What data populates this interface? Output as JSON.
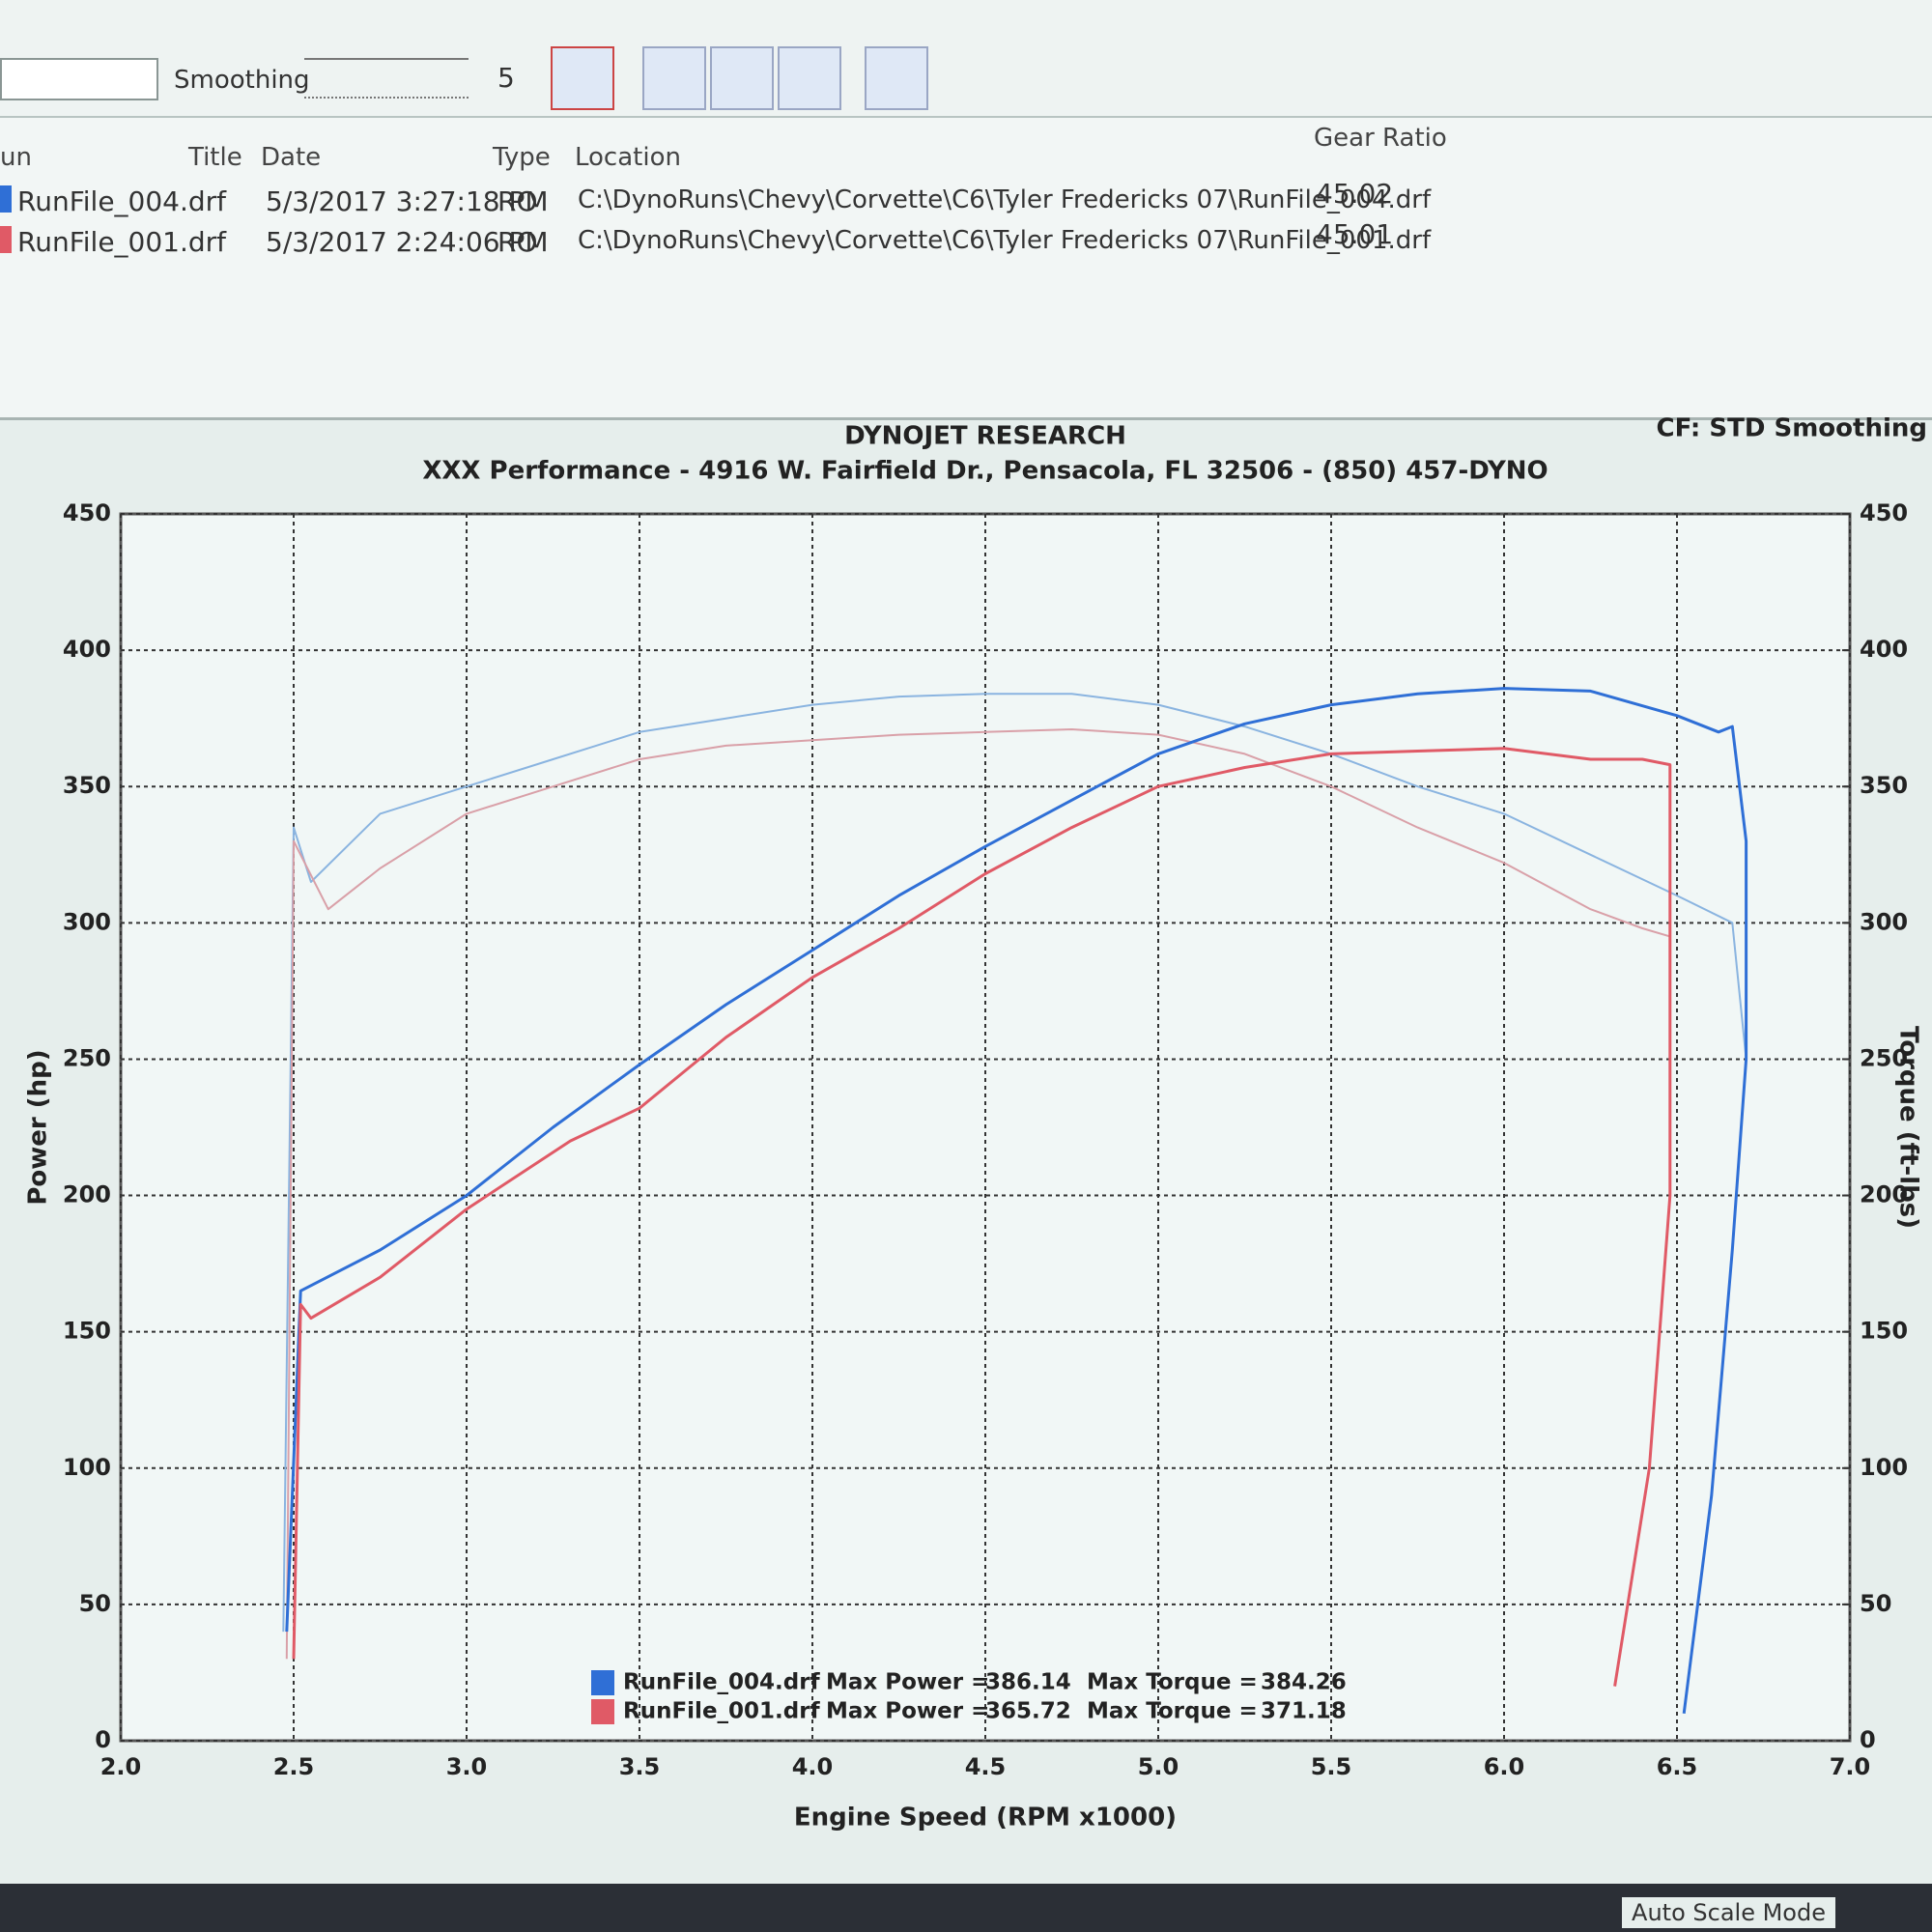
{
  "toolbar": {
    "smoothing_label": "Smoothing",
    "smoothing_value": 5
  },
  "run_table": {
    "headers": [
      "un",
      "Title",
      "Date",
      "Type",
      "Location",
      "Gear Ratio"
    ],
    "rows": [
      {
        "run": "RunFile_004.drf",
        "color": "#2f6fd6",
        "date": "5/3/2017 3:27:18 PM",
        "type": "RO",
        "location": "C:\\DynoRuns\\Chevy\\Corvette\\C6\\Tyler Fredericks 07\\RunFile_004.drf",
        "gear_ratio": 45.02
      },
      {
        "run": "RunFile_001.drf",
        "color": "#e05a66",
        "date": "5/3/2017 2:24:06 PM",
        "type": "RO",
        "location": "C:\\DynoRuns\\Chevy\\Corvette\\C6\\Tyler Fredericks 07\\RunFile_001.drf",
        "gear_ratio": 45.01
      }
    ]
  },
  "status_bar": {
    "mode": "Auto Scale Mode"
  },
  "chart_data": {
    "type": "line",
    "title": "DYNOJET RESEARCH",
    "subtitle": "XXX Performance - 4916 W. Fairfield Dr., Pensacola, FL 32506 - (850) 457-DYNO",
    "corner_note": "CF: STD  Smoothing",
    "x_label": "Engine Speed (RPM x1000)",
    "y_label": "Power (hp)",
    "y2_label": "Torque (ft-lbs)",
    "xlim": [
      2,
      7
    ],
    "xticks": [
      {
        "value": 2,
        "label": "2.0"
      },
      2.5,
      {
        "value": 3,
        "label": "3.0"
      },
      3.5,
      {
        "value": 4,
        "label": "4.0"
      },
      4.5,
      {
        "value": 5,
        "label": "5.0"
      },
      5.5,
      {
        "value": 6,
        "label": "6.0"
      },
      6.5,
      {
        "value": 7,
        "label": "7.0"
      }
    ],
    "ylim": [
      0,
      450
    ],
    "yticks": [
      0,
      50,
      100,
      150,
      200,
      250,
      300,
      350,
      400,
      450
    ],
    "y2lim": [
      0,
      450
    ],
    "y2ticks": [
      0,
      50,
      100,
      150,
      200,
      250,
      300,
      350,
      400,
      450
    ],
    "grid": true,
    "series": [
      {
        "name": "RunFile_004.drf",
        "color": "#8ab4e0",
        "axis": "y2",
        "x": [
          2.47,
          2.5,
          2.55,
          2.75,
          3.0,
          3.25,
          3.5,
          3.75,
          4.0,
          4.25,
          4.5,
          4.75,
          5.0,
          5.25,
          5.5,
          5.75,
          6.0,
          6.25,
          6.5,
          6.66,
          6.7
        ],
        "values": [
          40,
          335,
          315,
          340,
          350,
          360,
          370,
          375,
          380,
          383,
          384,
          384,
          380,
          372,
          362,
          350,
          340,
          325,
          310,
          300,
          250
        ]
      },
      {
        "name": "RunFile_001.drf",
        "color": "#d9a0a8",
        "axis": "y2",
        "x": [
          2.48,
          2.5,
          2.6,
          2.75,
          3.0,
          3.25,
          3.5,
          3.75,
          4.0,
          4.25,
          4.5,
          4.75,
          5.0,
          5.25,
          5.5,
          5.75,
          6.0,
          6.25,
          6.4,
          6.48,
          6.48
        ],
        "values": [
          30,
          330,
          305,
          320,
          340,
          350,
          360,
          365,
          367,
          369,
          370,
          371,
          369,
          362,
          350,
          335,
          322,
          305,
          298,
          295,
          200
        ]
      },
      {
        "name": "RunFile_004.drf",
        "color": "#2f6fd6",
        "x": [
          2.48,
          2.52,
          2.75,
          3.0,
          3.25,
          3.5,
          3.75,
          4.0,
          4.25,
          4.5,
          4.75,
          5.0,
          5.25,
          5.5,
          5.75,
          6.0,
          6.25,
          6.5,
          6.62,
          6.66,
          6.7,
          6.7,
          6.66,
          6.6,
          6.52
        ],
        "values": [
          40,
          165,
          180,
          200,
          225,
          248,
          270,
          290,
          310,
          328,
          345,
          362,
          373,
          380,
          384,
          386,
          385,
          376,
          370,
          372,
          330,
          250,
          180,
          90,
          10
        ]
      },
      {
        "name": "RunFile_001.drf",
        "color": "#e05a66",
        "x": [
          2.5,
          2.52,
          2.55,
          2.75,
          3.0,
          3.3,
          3.5,
          3.75,
          4.0,
          4.25,
          4.5,
          4.75,
          5.0,
          5.25,
          5.5,
          5.75,
          6.0,
          6.25,
          6.4,
          6.48,
          6.48,
          6.42,
          6.32
        ],
        "values": [
          30,
          160,
          155,
          170,
          195,
          220,
          232,
          258,
          280,
          298,
          318,
          335,
          350,
          357,
          362,
          363,
          364,
          360,
          360,
          358,
          200,
          100,
          20
        ]
      }
    ],
    "legend": [
      {
        "file": "RunFile_004.drf",
        "color": "#2f6fd6",
        "power_label": "Max Power =",
        "max_power": 386.14,
        "torque_label": "Max Torque =",
        "max_torque": 384.26
      },
      {
        "file": "RunFile_001.drf",
        "color": "#e05a66",
        "power_label": "Max Power =",
        "max_power": 365.72,
        "torque_label": "Max Torque =",
        "max_torque": 371.18
      }
    ]
  }
}
